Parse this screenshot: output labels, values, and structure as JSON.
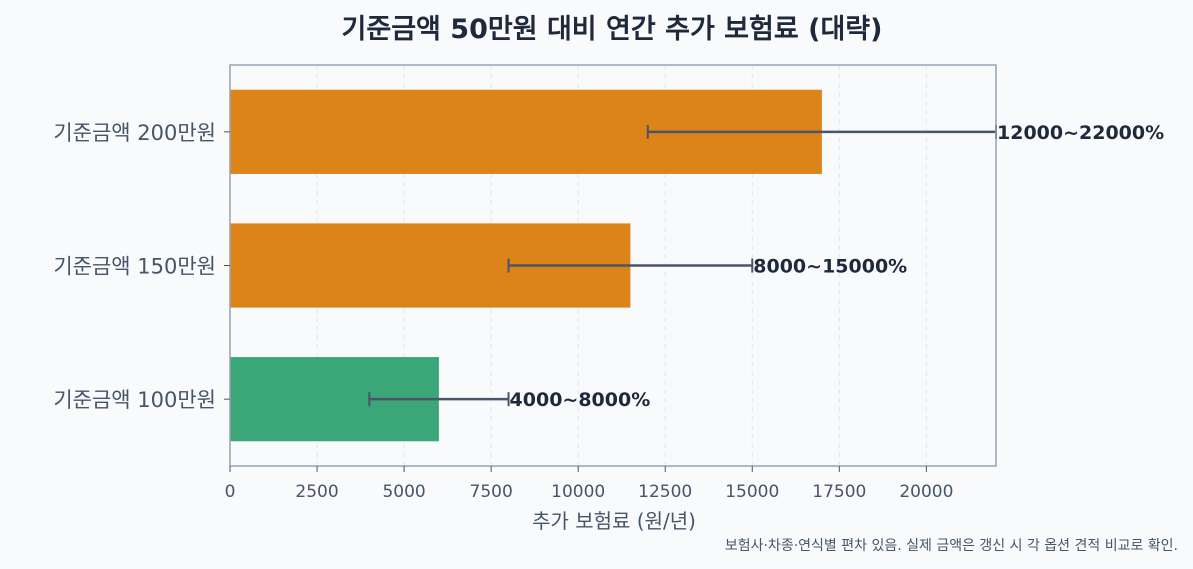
{
  "chart_data": {
    "type": "bar",
    "orientation": "horizontal",
    "title": "기준금액 50만원 대비 연간 추가 보험료 (대략)",
    "xlabel": "추가 보험료 (원/년)",
    "ylabel": "",
    "xlim": [
      0,
      22000
    ],
    "xticks": [
      "0",
      "2500",
      "5000",
      "7500",
      "10000",
      "12500",
      "15000",
      "17500",
      "20000"
    ],
    "grid": "vertical dashed",
    "categories": [
      "기준금액 200만원",
      "기준금액 150만원",
      "기준금액 100만원"
    ],
    "values": [
      17000,
      11500,
      6000
    ],
    "error_low": [
      12000,
      8000,
      4000
    ],
    "error_high": [
      22000,
      15000,
      8000
    ],
    "range_labels": [
      "12000~22000%",
      "8000~15000%",
      "4000~8000%"
    ],
    "colors": [
      "#dd8419",
      "#dd8419",
      "#3ba778"
    ],
    "error_color": "#4a5568",
    "footnote": "보험사·차종·연식별 편차 있음. 실제 금액은 갱신 시 각 옵션 견적 비교로 확인."
  }
}
